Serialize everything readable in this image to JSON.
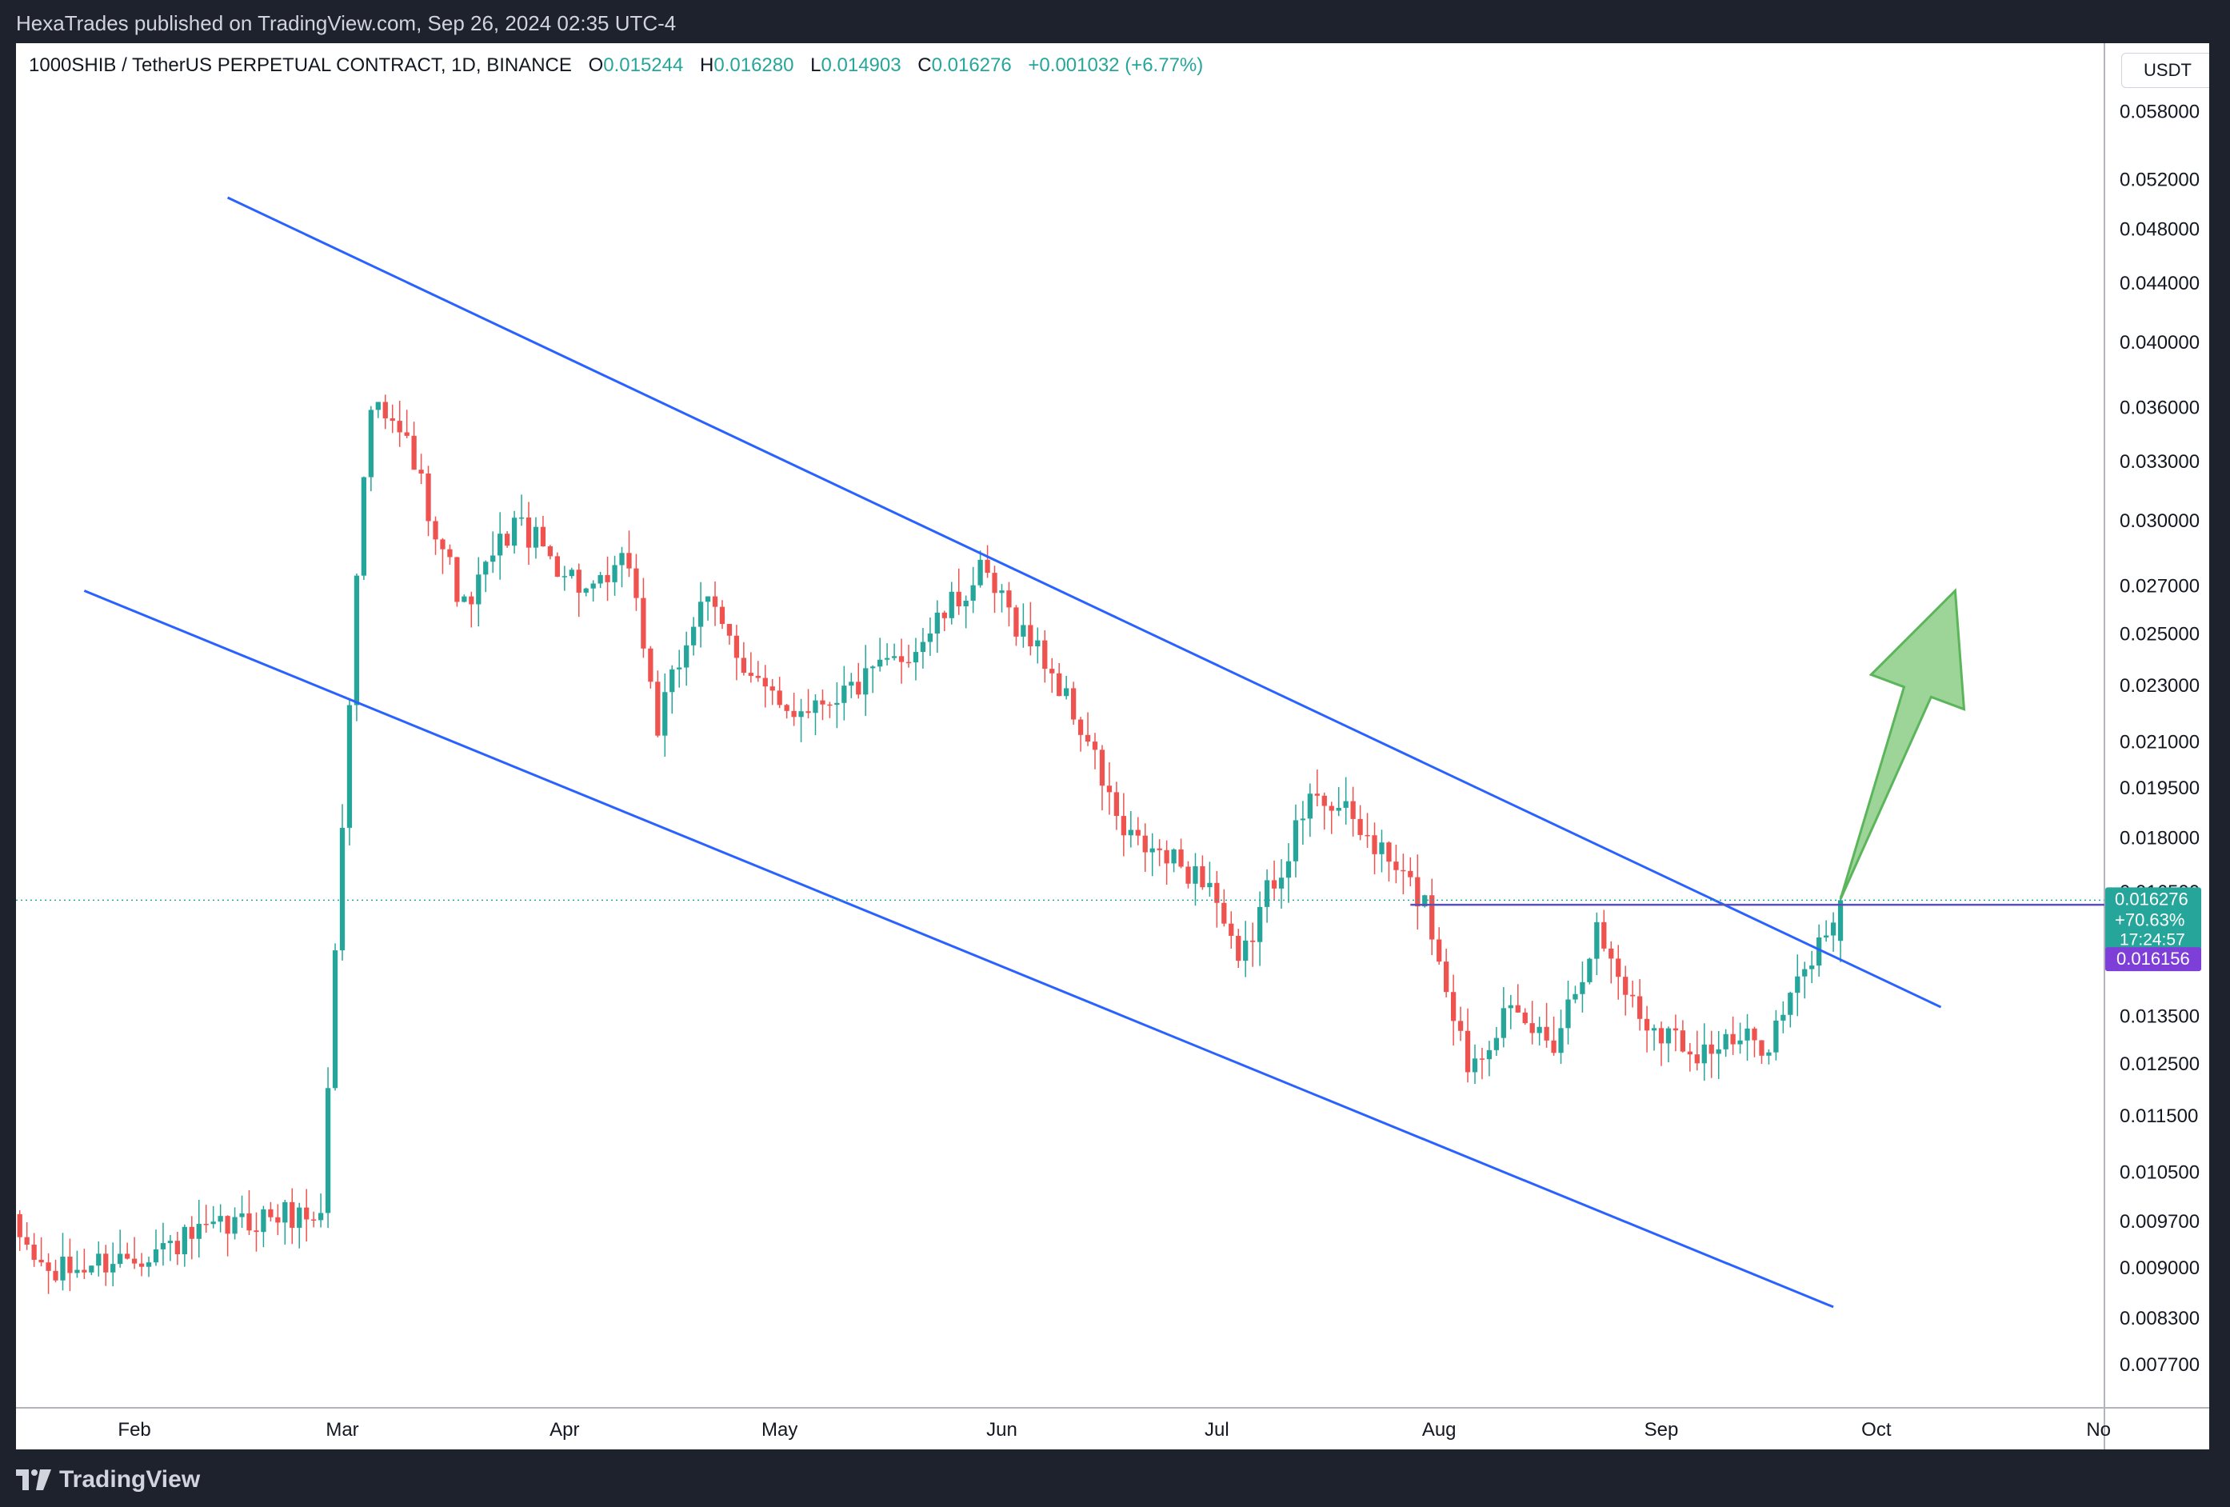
{
  "header": {
    "published": "HexaTrades published on TradingView.com, Sep 26, 2024 02:35 UTC-4"
  },
  "legend": {
    "symbol": "1000SHIB / TetherUS PERPETUAL CONTRACT, 1D, BINANCE",
    "o_label": "O",
    "o_value": "0.015244",
    "h_label": "H",
    "h_value": "0.016280",
    "l_label": "L",
    "l_value": "0.014903",
    "c_label": "C",
    "c_value": "0.016276",
    "change": "+0.001032 (+6.77%)"
  },
  "currency": "USDT",
  "footer": {
    "brand": "TradingView"
  },
  "colors": {
    "up": "#26a69a",
    "down": "#ef5350",
    "channel": "#2962ff",
    "resistance": "#5b4fb8",
    "arrow": "#7cc576",
    "label_purple": "#7e3fd8"
  },
  "chart_data": {
    "type": "candlestick",
    "interval": "1D",
    "scale": "log",
    "y_ticks": [
      "0.058000",
      "0.052000",
      "0.048000",
      "0.044000",
      "0.040000",
      "0.036000",
      "0.033000",
      "0.030000",
      "0.027000",
      "0.025000",
      "0.023000",
      "0.021000",
      "0.019500",
      "0.018000",
      "0.016500",
      "0.013500",
      "0.012500",
      "0.011500",
      "0.010500",
      "0.009700",
      "0.009000",
      "0.008300",
      "0.007700"
    ],
    "x_ticks": [
      "Feb",
      "Mar",
      "Apr",
      "May",
      "Jun",
      "Jul",
      "Aug",
      "Sep",
      "Oct",
      "No"
    ],
    "last_price_label": {
      "price": "0.016276",
      "change": "+70.63%",
      "countdown": "17:24:57"
    },
    "resistance_label": "0.016156",
    "resistance_level": 0.016156,
    "channel": {
      "upper": [
        {
          "date": "2024-02-14",
          "price": 0.0505
        },
        {
          "date": "2024-10-10",
          "price": 0.0137
        }
      ],
      "lower": [
        {
          "date": "2024-01-25",
          "price": 0.0268
        },
        {
          "date": "2024-09-25",
          "price": 0.00845
        }
      ]
    },
    "resistance_line": {
      "from": "2024-07-28",
      "to": "2024-10-14"
    },
    "arrow": {
      "from": "2024-09-26",
      "to": "2024-10-12",
      "from_price": 0.0163,
      "to_price": 0.0268
    },
    "anchors": [
      {
        "date": "2024-01-15",
        "close": 0.0096
      },
      {
        "date": "2024-01-20",
        "close": 0.0089
      },
      {
        "date": "2024-02-05",
        "close": 0.0093
      },
      {
        "date": "2024-02-20",
        "close": 0.0098
      },
      {
        "date": "2024-02-27",
        "close": 0.0098
      },
      {
        "date": "2024-03-03",
        "close": 0.028
      },
      {
        "date": "2024-03-05",
        "close": 0.036
      },
      {
        "date": "2024-03-10",
        "close": 0.034
      },
      {
        "date": "2024-03-18",
        "close": 0.026
      },
      {
        "date": "2024-03-25",
        "close": 0.03
      },
      {
        "date": "2024-04-05",
        "close": 0.0265
      },
      {
        "date": "2024-04-10",
        "close": 0.0282
      },
      {
        "date": "2024-04-14",
        "close": 0.0215
      },
      {
        "date": "2024-04-20",
        "close": 0.0265
      },
      {
        "date": "2024-05-01",
        "close": 0.022
      },
      {
        "date": "2024-05-12",
        "close": 0.023
      },
      {
        "date": "2024-05-20",
        "close": 0.0245
      },
      {
        "date": "2024-05-29",
        "close": 0.0275
      },
      {
        "date": "2024-06-07",
        "close": 0.024
      },
      {
        "date": "2024-06-13",
        "close": 0.021
      },
      {
        "date": "2024-06-18",
        "close": 0.018
      },
      {
        "date": "2024-06-30",
        "close": 0.0168
      },
      {
        "date": "2024-07-04",
        "close": 0.0145
      },
      {
        "date": "2024-07-08",
        "close": 0.0165
      },
      {
        "date": "2024-07-15",
        "close": 0.0195
      },
      {
        "date": "2024-07-22",
        "close": 0.018
      },
      {
        "date": "2024-07-30",
        "close": 0.0162
      },
      {
        "date": "2024-08-05",
        "close": 0.0125
      },
      {
        "date": "2024-08-10",
        "close": 0.0135
      },
      {
        "date": "2024-08-17",
        "close": 0.013
      },
      {
        "date": "2024-08-23",
        "close": 0.0155
      },
      {
        "date": "2024-08-29",
        "close": 0.0135
      },
      {
        "date": "2024-09-06",
        "close": 0.0128
      },
      {
        "date": "2024-09-16",
        "close": 0.013
      },
      {
        "date": "2024-09-22",
        "close": 0.0148
      },
      {
        "date": "2024-09-26",
        "close": 0.016276
      }
    ]
  }
}
